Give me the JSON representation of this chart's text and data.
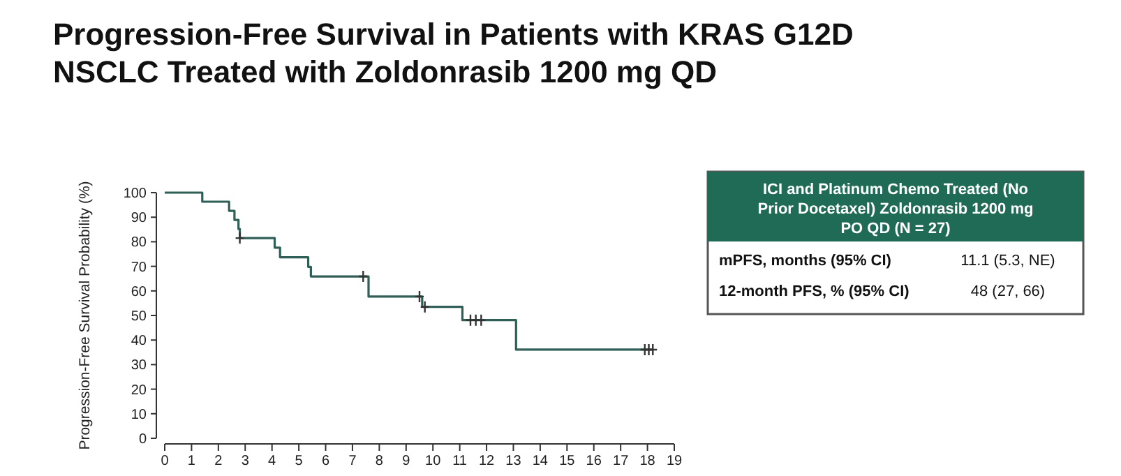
{
  "chart_data": [
    {
      "type": "step",
      "title": "Progression-Free Survival in Patients with KRAS G12D NSCLC Treated with Zoldonrasib 1200 mg QD",
      "ylabel": "Progression-Free Survival Probability (%)",
      "xlim": [
        0,
        19
      ],
      "xticks": [
        0,
        1,
        2,
        3,
        4,
        5,
        6,
        7,
        8,
        9,
        10,
        11,
        12,
        13,
        14,
        15,
        16,
        17,
        18,
        19
      ],
      "ylim": [
        0,
        100
      ],
      "yticks": [
        0,
        10,
        20,
        30,
        40,
        50,
        60,
        70,
        80,
        90,
        100
      ],
      "series": [
        {
          "type": "step",
          "color": "#2f5f57",
          "x": [
            0,
            1.4,
            2.4,
            2.6,
            2.75,
            2.8,
            4.1,
            4.3,
            5.35,
            5.45,
            7.6,
            9.6,
            11.1,
            13.1,
            18.2
          ],
          "values": [
            100,
            96.3,
            92.6,
            88.9,
            85.2,
            81.5,
            77.6,
            73.7,
            69.8,
            65.9,
            57.7,
            53.5,
            48.1,
            36.1,
            36.1
          ]
        },
        {
          "type": "scatter",
          "marker": "cross",
          "color": "#333333",
          "x": [
            2.8,
            7.4,
            9.5,
            9.7,
            11.4,
            11.6,
            11.8,
            17.9,
            18.05,
            18.2
          ],
          "values": [
            81.5,
            65.9,
            57.7,
            53.5,
            48.1,
            48.1,
            48.1,
            36.1,
            36.1,
            36.1
          ]
        }
      ]
    },
    {
      "type": "other",
      "title": "ICI and Platinum Chemo Treated (No Prior Docetaxel) Zoldonrasib 1200 mg PO QD (N = 27)",
      "categories": [
        "mPFS, months (95% CI)",
        "12-month PFS, % (95% CI)"
      ],
      "value_labels": [
        "11.1 (5.3, NE)",
        "48 (27, 66)"
      ]
    }
  ]
}
